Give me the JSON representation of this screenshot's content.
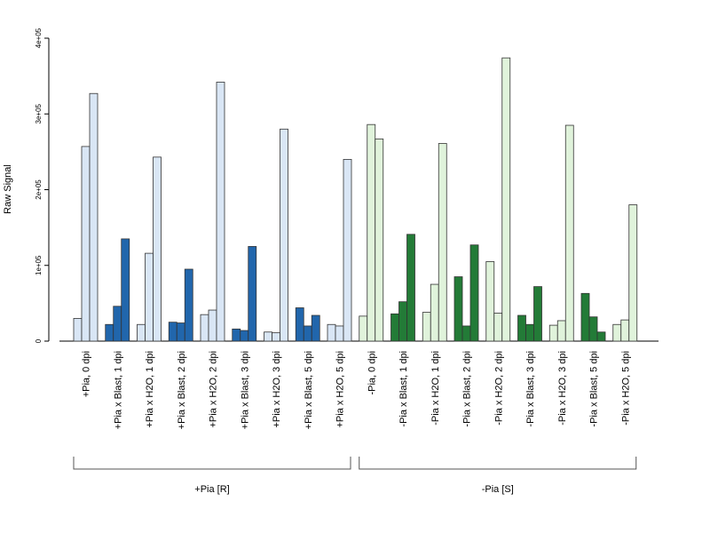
{
  "chart_data": {
    "type": "bar",
    "ylabel": "Raw Signal",
    "xlabel": "",
    "ylim": [
      0,
      400000
    ],
    "yticks": [
      {
        "value": 0,
        "label": "0"
      },
      {
        "value": 100000,
        "label": "1e+05"
      },
      {
        "value": 200000,
        "label": "2e+05"
      },
      {
        "value": 300000,
        "label": "3e+05"
      },
      {
        "value": 400000,
        "label": "4e+05"
      }
    ],
    "groups": [
      {
        "label": "+Pia [R]",
        "categories": [
          {
            "label": "+Pia, 0 dpi",
            "values": [
              30000,
              257000,
              327000
            ],
            "colors": [
              "#d9e6f5",
              "#d9e6f5",
              "#d9e6f5"
            ]
          },
          {
            "label": "+Pia x Blast, 1 dpi",
            "values": [
              22000,
              46000,
              135000
            ],
            "colors": [
              "#2166ac",
              "#2166ac",
              "#2166ac"
            ]
          },
          {
            "label": "+Pia x H2O, 1 dpi",
            "values": [
              22000,
              116000,
              243000
            ],
            "colors": [
              "#d9e6f5",
              "#d9e6f5",
              "#d9e6f5"
            ]
          },
          {
            "label": "+Pia x Blast, 2 dpi",
            "values": [
              25000,
              24000,
              95000
            ],
            "colors": [
              "#2166ac",
              "#2166ac",
              "#2166ac"
            ]
          },
          {
            "label": "+Pia x H2O, 2 dpi",
            "values": [
              35000,
              41000,
              342000
            ],
            "colors": [
              "#d9e6f5",
              "#d9e6f5",
              "#d9e6f5"
            ]
          },
          {
            "label": "+Pia x Blast, 3 dpi",
            "values": [
              16000,
              14000,
              125000
            ],
            "colors": [
              "#2166ac",
              "#2166ac",
              "#2166ac"
            ]
          },
          {
            "label": "+Pia x H2O, 3 dpi",
            "values": [
              12000,
              11000,
              280000
            ],
            "colors": [
              "#d9e6f5",
              "#d9e6f5",
              "#d9e6f5"
            ]
          },
          {
            "label": "+Pia x Blast, 5 dpi",
            "values": [
              44000,
              20000,
              34000
            ],
            "colors": [
              "#2166ac",
              "#2166ac",
              "#2166ac"
            ]
          },
          {
            "label": "+Pia x H2O, 5 dpi",
            "values": [
              22000,
              20000,
              240000
            ],
            "colors": [
              "#d9e6f5",
              "#d9e6f5",
              "#d9e6f5"
            ]
          }
        ]
      },
      {
        "label": "-Pia [S]",
        "categories": [
          {
            "label": "-Pia, 0 dpi",
            "values": [
              33000,
              286000,
              267000
            ],
            "colors": [
              "#e0f3db",
              "#e0f3db",
              "#e0f3db"
            ]
          },
          {
            "label": "-Pia x Blast, 1 dpi",
            "values": [
              36000,
              52000,
              141000
            ],
            "colors": [
              "#237b37",
              "#237b37",
              "#237b37"
            ]
          },
          {
            "label": "-Pia x H2O, 1 dpi",
            "values": [
              38000,
              75000,
              261000
            ],
            "colors": [
              "#e0f3db",
              "#e0f3db",
              "#e0f3db"
            ]
          },
          {
            "label": "-Pia x Blast, 2 dpi",
            "values": [
              85000,
              20000,
              127000
            ],
            "colors": [
              "#237b37",
              "#237b37",
              "#237b37"
            ]
          },
          {
            "label": "-Pia x H2O, 2 dpi",
            "values": [
              105000,
              37000,
              374000
            ],
            "colors": [
              "#e0f3db",
              "#e0f3db",
              "#e0f3db"
            ]
          },
          {
            "label": "-Pia x Blast, 3 dpi",
            "values": [
              34000,
              22000,
              72000
            ],
            "colors": [
              "#237b37",
              "#237b37",
              "#237b37"
            ]
          },
          {
            "label": "-Pia x H2O, 3 dpi",
            "values": [
              21000,
              27000,
              285000
            ],
            "colors": [
              "#e0f3db",
              "#e0f3db",
              "#e0f3db"
            ]
          },
          {
            "label": "-Pia x Blast, 5 dpi",
            "values": [
              63000,
              32000,
              12000
            ],
            "colors": [
              "#237b37",
              "#237b37",
              "#237b37"
            ]
          },
          {
            "label": "-Pia x H2O, 5 dpi",
            "values": [
              22000,
              28000,
              180000
            ],
            "colors": [
              "#e0f3db",
              "#e0f3db",
              "#e0f3db"
            ]
          }
        ]
      }
    ],
    "legend": "none",
    "grid": false
  }
}
